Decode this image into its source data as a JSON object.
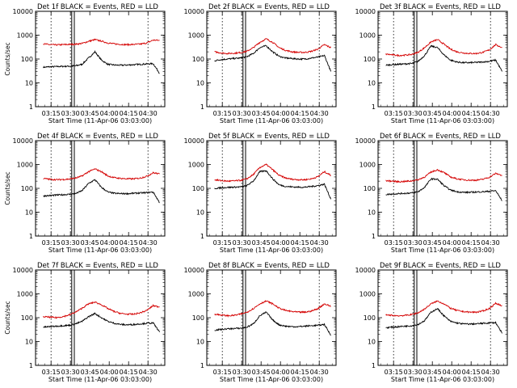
{
  "figure": {
    "background": "#ffffff"
  },
  "colors": {
    "events": "#000000",
    "lld": "#d40000",
    "axis": "#000000"
  },
  "shared_x_ticks": [
    "03:15",
    "03:30",
    "03:45",
    "04:00",
    "04:15",
    "04:30"
  ],
  "shared_y_ticks": [
    "1",
    "10",
    "100",
    "1000",
    "10000"
  ],
  "chart_data": [
    {
      "type": "line",
      "title": "Det 1f BLACK = Events, RED = LLD",
      "xlabel": "Start Time (11-Apr-06 03:03:00)",
      "ylabel": "Counts/sec",
      "y_scale": "log",
      "ylim": [
        1,
        10000
      ],
      "x": [
        "03:09",
        "03:14",
        "03:19",
        "03:24",
        "03:29",
        "03:34",
        "03:39",
        "03:44",
        "03:49",
        "03:54",
        "03:59",
        "04:04",
        "04:09",
        "04:14",
        "04:19",
        "04:24",
        "04:29",
        "04:34",
        "04:39"
      ],
      "series": [
        {
          "name": "Events",
          "color": "#000000",
          "values": [
            45,
            47,
            48,
            49,
            50,
            52,
            60,
            110,
            200,
            90,
            60,
            56,
            55,
            56,
            58,
            60,
            62,
            64,
            25
          ]
        },
        {
          "name": "LLD",
          "color": "#d40000",
          "values": [
            430,
            400,
            390,
            400,
            410,
            420,
            450,
            550,
            650,
            560,
            470,
            430,
            410,
            400,
            410,
            420,
            470,
            620,
            600
          ]
        }
      ]
    },
    {
      "type": "line",
      "title": "Det 2f BLACK = Events, RED = LLD",
      "xlabel": "Start Time (11-Apr-06 03:03:00)",
      "ylabel": "",
      "y_scale": "log",
      "ylim": [
        1,
        10000
      ],
      "x": [
        "03:09",
        "03:14",
        "03:19",
        "03:24",
        "03:29",
        "03:34",
        "03:39",
        "03:44",
        "03:49",
        "03:54",
        "03:59",
        "04:04",
        "04:09",
        "04:14",
        "04:19",
        "04:24",
        "04:29",
        "04:34",
        "04:39"
      ],
      "series": [
        {
          "name": "Events",
          "color": "#000000",
          "values": [
            85,
            95,
            100,
            105,
            110,
            125,
            170,
            300,
            360,
            200,
            130,
            110,
            105,
            100,
            100,
            110,
            120,
            140,
            30
          ]
        },
        {
          "name": "LLD",
          "color": "#d40000",
          "values": [
            200,
            180,
            170,
            175,
            185,
            210,
            300,
            500,
            700,
            500,
            300,
            230,
            200,
            190,
            190,
            210,
            260,
            400,
            300
          ]
        }
      ]
    },
    {
      "type": "line",
      "title": "Det 3f BLACK = Events, RED = LLD",
      "xlabel": "Start Time (11-Apr-06 03:03:00)",
      "ylabel": "",
      "y_scale": "log",
      "ylim": [
        1,
        10000
      ],
      "x": [
        "03:09",
        "03:14",
        "03:19",
        "03:24",
        "03:29",
        "03:34",
        "03:39",
        "03:44",
        "03:49",
        "03:54",
        "03:59",
        "04:04",
        "04:09",
        "04:14",
        "04:19",
        "04:24",
        "04:29",
        "04:34",
        "04:39"
      ],
      "series": [
        {
          "name": "Events",
          "color": "#000000",
          "values": [
            55,
            58,
            60,
            62,
            65,
            80,
            140,
            350,
            300,
            150,
            90,
            75,
            70,
            70,
            72,
            75,
            80,
            90,
            30
          ]
        },
        {
          "name": "LLD",
          "color": "#d40000",
          "values": [
            160,
            150,
            140,
            145,
            155,
            190,
            300,
            520,
            650,
            420,
            260,
            200,
            180,
            170,
            170,
            190,
            240,
            400,
            300
          ]
        }
      ]
    },
    {
      "type": "line",
      "title": "Det 4f BLACK = Events, RED = LLD",
      "xlabel": "Start Time (11-Apr-06 03:03:00)",
      "ylabel": "Counts/sec",
      "y_scale": "log",
      "ylim": [
        1,
        10000
      ],
      "x": [
        "03:09",
        "03:14",
        "03:19",
        "03:24",
        "03:29",
        "03:34",
        "03:39",
        "03:44",
        "03:49",
        "03:54",
        "03:59",
        "04:04",
        "04:09",
        "04:14",
        "04:19",
        "04:24",
        "04:29",
        "04:34",
        "04:39"
      ],
      "series": [
        {
          "name": "Events",
          "color": "#000000",
          "values": [
            48,
            50,
            52,
            54,
            56,
            60,
            80,
            160,
            230,
            110,
            70,
            62,
            60,
            60,
            62,
            64,
            66,
            70,
            25
          ]
        },
        {
          "name": "LLD",
          "color": "#d40000",
          "values": [
            260,
            240,
            230,
            235,
            245,
            270,
            330,
            500,
            650,
            500,
            330,
            280,
            260,
            250,
            250,
            270,
            320,
            450,
            400
          ]
        }
      ]
    },
    {
      "type": "line",
      "title": "Det 5f BLACK = Events, RED = LLD",
      "xlabel": "Start Time (11-Apr-06 03:03:00)",
      "ylabel": "",
      "y_scale": "log",
      "ylim": [
        1,
        10000
      ],
      "x": [
        "03:09",
        "03:14",
        "03:19",
        "03:24",
        "03:29",
        "03:34",
        "03:39",
        "03:44",
        "03:49",
        "03:54",
        "03:59",
        "04:04",
        "04:09",
        "04:14",
        "04:19",
        "04:24",
        "04:29",
        "04:34",
        "04:39"
      ],
      "series": [
        {
          "name": "Events",
          "color": "#000000",
          "values": [
            100,
            105,
            110,
            112,
            115,
            130,
            200,
            500,
            550,
            250,
            140,
            120,
            115,
            112,
            112,
            120,
            130,
            150,
            35
          ]
        },
        {
          "name": "LLD",
          "color": "#d40000",
          "values": [
            230,
            210,
            200,
            205,
            215,
            250,
            380,
            750,
            1000,
            600,
            350,
            270,
            240,
            230,
            230,
            250,
            310,
            500,
            350
          ]
        }
      ]
    },
    {
      "type": "line",
      "title": "Det 6f BLACK = Events, RED = LLD",
      "xlabel": "Start Time (11-Apr-06 03:03:00)",
      "ylabel": "",
      "y_scale": "log",
      "ylim": [
        1,
        10000
      ],
      "x": [
        "03:09",
        "03:14",
        "03:19",
        "03:24",
        "03:29",
        "03:34",
        "03:39",
        "03:44",
        "03:49",
        "03:54",
        "03:59",
        "04:04",
        "04:09",
        "04:14",
        "04:19",
        "04:24",
        "04:29",
        "04:34",
        "04:39"
      ],
      "series": [
        {
          "name": "Events",
          "color": "#000000",
          "values": [
            55,
            58,
            60,
            62,
            64,
            72,
            110,
            250,
            240,
            130,
            85,
            72,
            68,
            68,
            70,
            72,
            75,
            80,
            30
          ]
        },
        {
          "name": "LLD",
          "color": "#d40000",
          "values": [
            210,
            200,
            190,
            195,
            205,
            230,
            300,
            480,
            600,
            460,
            300,
            250,
            230,
            220,
            220,
            240,
            290,
            420,
            350
          ]
        }
      ]
    },
    {
      "type": "line",
      "title": "Det 7f BLACK = Events, RED = LLD",
      "xlabel": "Start Time (11-Apr-06 03:03:00)",
      "ylabel": "Counts/sec",
      "y_scale": "log",
      "ylim": [
        1,
        10000
      ],
      "x": [
        "03:09",
        "03:14",
        "03:19",
        "03:24",
        "03:29",
        "03:34",
        "03:39",
        "03:44",
        "03:49",
        "03:54",
        "03:59",
        "04:04",
        "04:09",
        "04:14",
        "04:19",
        "04:24",
        "04:29",
        "04:34",
        "04:39"
      ],
      "series": [
        {
          "name": "Events",
          "color": "#000000",
          "values": [
            40,
            42,
            44,
            46,
            48,
            55,
            70,
            110,
            150,
            100,
            70,
            58,
            52,
            50,
            52,
            55,
            58,
            60,
            25
          ]
        },
        {
          "name": "LLD",
          "color": "#d40000",
          "values": [
            110,
            105,
            100,
            110,
            130,
            170,
            250,
            380,
            450,
            350,
            240,
            180,
            150,
            140,
            140,
            160,
            200,
            320,
            280
          ]
        }
      ]
    },
    {
      "type": "line",
      "title": "Det 8f BLACK = Events, RED = LLD",
      "xlabel": "Start Time (11-Apr-06 03:03:00)",
      "ylabel": "",
      "y_scale": "log",
      "ylim": [
        1,
        10000
      ],
      "x": [
        "03:09",
        "03:14",
        "03:19",
        "03:24",
        "03:29",
        "03:34",
        "03:39",
        "03:44",
        "03:49",
        "03:54",
        "03:59",
        "04:04",
        "04:09",
        "04:14",
        "04:19",
        "04:24",
        "04:29",
        "04:34",
        "04:39"
      ],
      "series": [
        {
          "name": "Events",
          "color": "#000000",
          "values": [
            30,
            32,
            34,
            35,
            36,
            40,
            55,
            120,
            170,
            80,
            50,
            44,
            42,
            42,
            44,
            46,
            48,
            52,
            18
          ]
        },
        {
          "name": "LLD",
          "color": "#d40000",
          "values": [
            140,
            130,
            120,
            125,
            140,
            170,
            240,
            380,
            500,
            380,
            250,
            200,
            180,
            170,
            170,
            190,
            240,
            380,
            300
          ]
        }
      ]
    },
    {
      "type": "line",
      "title": "Det 9f BLACK = Events, RED = LLD",
      "xlabel": "Start Time (11-Apr-06 03:03:00)",
      "ylabel": "",
      "y_scale": "log",
      "ylim": [
        1,
        10000
      ],
      "x": [
        "03:09",
        "03:14",
        "03:19",
        "03:24",
        "03:29",
        "03:34",
        "03:39",
        "03:44",
        "03:49",
        "03:54",
        "03:59",
        "04:04",
        "04:09",
        "04:14",
        "04:19",
        "04:24",
        "04:29",
        "04:34",
        "04:39"
      ],
      "series": [
        {
          "name": "Events",
          "color": "#000000",
          "values": [
            38,
            40,
            42,
            44,
            46,
            52,
            75,
            170,
            240,
            120,
            70,
            60,
            55,
            54,
            55,
            58,
            60,
            62,
            22
          ]
        },
        {
          "name": "LLD",
          "color": "#d40000",
          "values": [
            130,
            125,
            120,
            125,
            135,
            160,
            230,
            380,
            500,
            380,
            250,
            200,
            180,
            170,
            170,
            190,
            240,
            400,
            320
          ]
        }
      ]
    }
  ]
}
